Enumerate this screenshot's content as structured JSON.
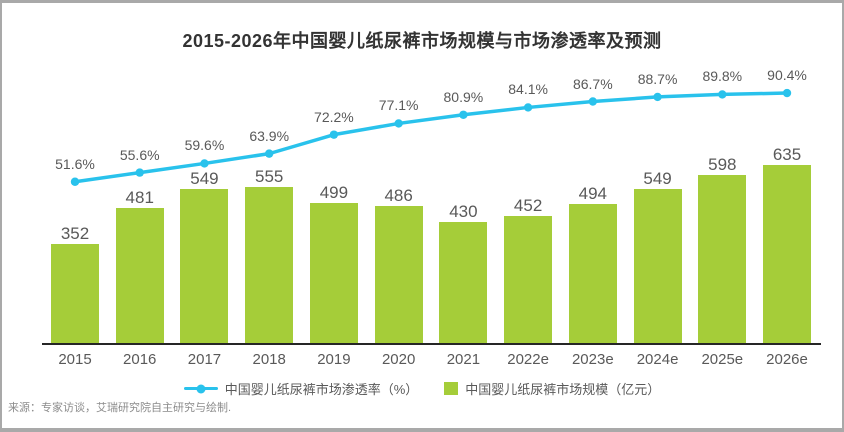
{
  "title": "2015-2026年中国婴儿纸尿裤市场规模与市场渗透率及预测",
  "source_note": "来源：专家访谈，艾瑞研究院自主研究与绘制.",
  "legend": {
    "items": [
      {
        "label": "中国婴儿纸尿裤市场渗透率（%）",
        "symbol": "line-with-dot"
      },
      {
        "label": "中国婴儿纸尿裤市场规模（亿元）",
        "symbol": "square"
      }
    ]
  },
  "colors": {
    "line": "#29c2ec",
    "bar": "#a5cd39",
    "axis": "#262626",
    "title_text": "#333333",
    "label_text": "#595959",
    "source_text": "#8c8c8c",
    "frame_border": "#a9a9a9"
  },
  "chart_data": {
    "type": "bar+line combo",
    "title": "2015-2026年中国婴儿纸尿裤市场规模与市场渗透率及预测",
    "categories": [
      "2015",
      "2016",
      "2017",
      "2018",
      "2019",
      "2020",
      "2021",
      "2022e",
      "2023e",
      "2024e",
      "2025e",
      "2026e"
    ],
    "series": [
      {
        "name": "中国婴儿纸尿裤市场渗透率（%）",
        "type": "line",
        "unit": "%",
        "color": "#29c2ec",
        "values": [
          51.6,
          55.6,
          59.6,
          63.9,
          72.2,
          77.1,
          80.9,
          84.1,
          86.7,
          88.7,
          89.8,
          90.4
        ]
      },
      {
        "name": "中国婴儿纸尿裤市场规模（亿元）",
        "type": "bar",
        "unit": "亿元",
        "color": "#a5cd39",
        "values": [
          352,
          481,
          549,
          555,
          499,
          486,
          430,
          452,
          494,
          549,
          598,
          635
        ]
      }
    ],
    "data_labels": true,
    "grid": false,
    "legend_position": "bottom",
    "xlabel": "",
    "ylabel": ""
  }
}
